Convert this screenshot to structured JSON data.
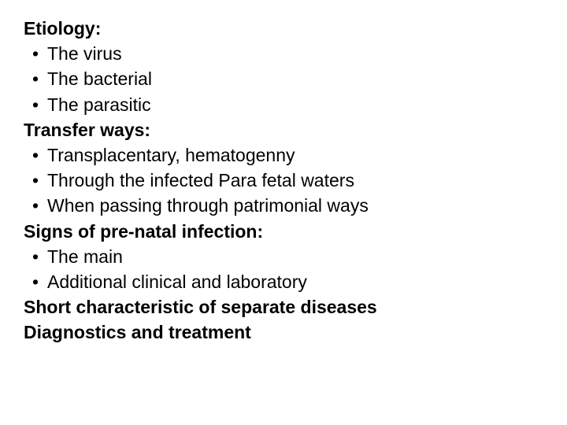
{
  "text_color": "#000000",
  "background_color": "#ffffff",
  "font_family": "Arial",
  "heading_fontsize": 23,
  "body_fontsize": 23,
  "line_height": 1.4,
  "sections": {
    "etiology": {
      "title": "Etiology:",
      "items": [
        "The virus",
        "The bacterial",
        "The parasitic"
      ]
    },
    "transfer": {
      "title": "Transfer ways:",
      "items": [
        "Transplacentary, hematogenny",
        "Through the infected Para fetal waters",
        "When passing through patrimonial ways"
      ]
    },
    "signs": {
      "title": "Signs of pre-natal infection:",
      "items": [
        "The main",
        "Additional clinical and laboratory"
      ]
    },
    "short_char": {
      "title": "Short characteristic of separate diseases"
    },
    "diagnostics": {
      "title": "Diagnostics and treatment"
    }
  }
}
